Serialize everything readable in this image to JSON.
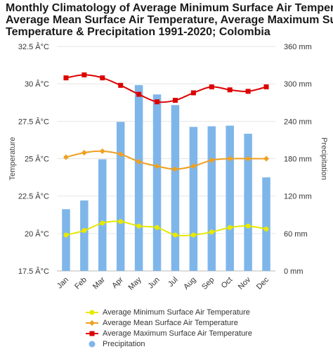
{
  "chart_data": {
    "type": "bar+line",
    "title_lines": [
      "Monthly Climatology of Average Minimum Surface Air Temperatu",
      "Average Mean Surface Air Temperature, Average Maximum Surfa",
      "Temperature & Precipitation 1991-2020; Colombia"
    ],
    "categories": [
      "Jan",
      "Feb",
      "Mar",
      "Apr",
      "May",
      "Jun",
      "Jul",
      "Aug",
      "Sep",
      "Oct",
      "Nov",
      "Dec"
    ],
    "ylabel_left": "Temperature",
    "ylabel_right": "Precipitation",
    "y_left_ticks": [
      "32.5 Â°C",
      "30 Â°C",
      "27.5 Â°C",
      "25 Â°C",
      "22.5 Â°C",
      "20 Â°C",
      "17.5 Â°C"
    ],
    "y_left_range": [
      17.5,
      32.5
    ],
    "y_right_ticks": [
      "360 mm",
      "300 mm",
      "240 mm",
      "180 mm",
      "120 mm",
      "60 mm",
      "0 mm"
    ],
    "y_right_range": [
      0,
      360
    ],
    "grid": true,
    "legend_position": "bottom",
    "series": [
      {
        "name": "Average Minimum Surface Air Temperature",
        "kind": "line",
        "axis": "left",
        "color": "#e8e800",
        "values": [
          19.9,
          20.2,
          20.7,
          20.8,
          20.5,
          20.4,
          19.9,
          19.9,
          20.1,
          20.4,
          20.5,
          20.3
        ]
      },
      {
        "name": "Average Mean Surface Air Temperature",
        "kind": "line",
        "axis": "left",
        "color": "#f0a020",
        "values": [
          25.1,
          25.4,
          25.5,
          25.3,
          24.8,
          24.5,
          24.3,
          24.5,
          24.9,
          25.0,
          25.0,
          25.0
        ]
      },
      {
        "name": "Average Maximum Surface Air Temperature",
        "kind": "line",
        "axis": "left",
        "color": "#dd0000",
        "values": [
          30.4,
          30.6,
          30.4,
          29.9,
          29.3,
          28.8,
          28.9,
          29.4,
          29.8,
          29.6,
          29.5,
          29.8
        ]
      },
      {
        "name": "Precipitation",
        "kind": "bar",
        "axis": "right",
        "color": "#7fb6ea",
        "values": [
          99,
          113,
          179,
          239,
          298,
          283,
          266,
          231,
          232,
          233,
          220,
          150
        ]
      }
    ]
  }
}
